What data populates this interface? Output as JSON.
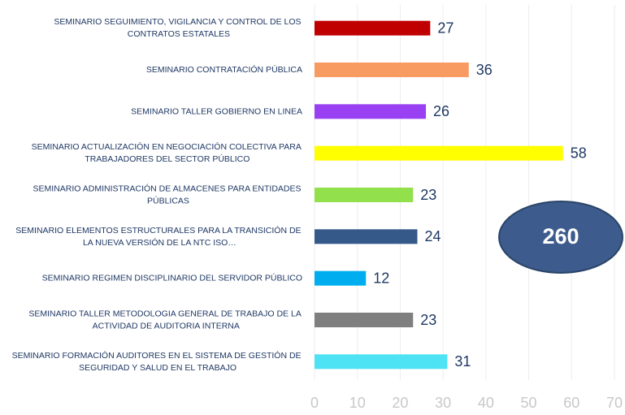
{
  "chart_data": {
    "type": "bar",
    "orientation": "horizontal",
    "categories": [
      "SEMINARIO SEGUIMIENTO, VIGILANCIA Y CONTROL DE LOS CONTRATOS ESTATALES",
      "SEMINARIO CONTRATACIÓN PÚBLICA",
      "SEMINARIO TALLER GOBIERNO EN LINEA",
      "SEMINARIO ACTUALIZACIÓN EN NEGOCIACIÓN COLECTIVA PARA TRABAJADORES DEL SECTOR PÚBLICO",
      "SEMINARIO ADMINISTRACIÓN DE ALMACENES PARA ENTIDADES PÚBLICAS",
      "SEMINARIO ELEMENTOS ESTRUCTURALES PARA LA TRANSICIÓN DE LA NUEVA VERSIÓN DE LA NTC ISO…",
      "SEMINARIO REGIMEN DISCIPLINARIO DEL SERVIDOR PÚBLICO",
      "SEMINARIO TALLER METODOLOGIA GENERAL DE TRABAJO DE LA ACTIVIDAD DE AUDITORIA INTERNA",
      "SEMINARIO FORMACIÓN AUDITORES EN EL SISTEMA DE GESTIÓN DE SEGURIDAD Y SALUD EN EL TRABAJO"
    ],
    "values": [
      27,
      36,
      26,
      58,
      23,
      24,
      12,
      23,
      31
    ],
    "colors": [
      "#c00000",
      "#f79b63",
      "#9940f2",
      "#ffff00",
      "#92e04c",
      "#355988",
      "#00aeef",
      "#7f7f7f",
      "#4de3f5"
    ],
    "xlim": [
      0,
      70
    ],
    "xticks": [
      0,
      10,
      20,
      30,
      40,
      50,
      60,
      70
    ],
    "grid": true,
    "annotation": 260
  }
}
